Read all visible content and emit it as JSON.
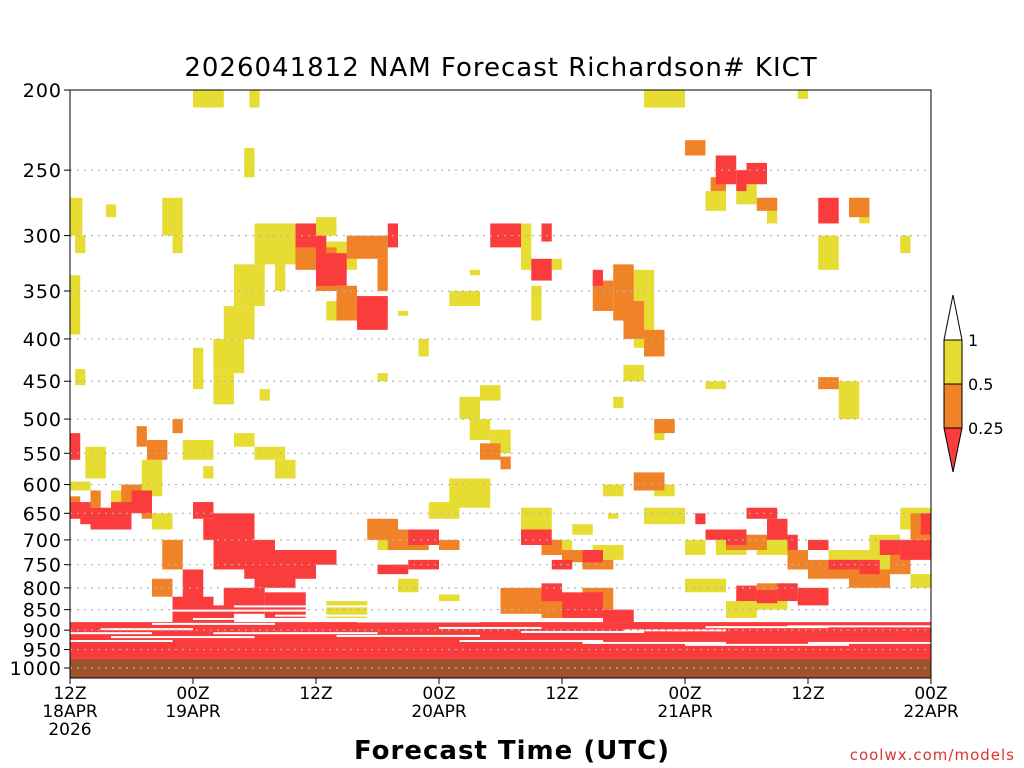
{
  "chart_data": {
    "type": "heatmap",
    "title": "2026041812 NAM Forecast Richardson# KICT",
    "xlabel": "Forecast Time (UTC)",
    "ylabel": "",
    "credit": "coolwx.com/models",
    "x_range_hours": [
      0,
      84
    ],
    "y_range_hPa": [
      200,
      1000
    ],
    "y_ticks": [
      200,
      250,
      300,
      350,
      400,
      450,
      500,
      550,
      600,
      650,
      700,
      750,
      800,
      850,
      900,
      950,
      1000
    ],
    "y_tick_labels": [
      "200",
      "250",
      "300",
      "350",
      "400",
      "450",
      "500",
      "550",
      "600",
      "650",
      "700",
      "750",
      "800",
      "850",
      "900",
      "950",
      "1000"
    ],
    "x_ticks": [
      {
        "hour": 0,
        "line1": "12Z",
        "line2": "18APR",
        "line3": "2026"
      },
      {
        "hour": 12,
        "line1": "00Z",
        "line2": "19APR",
        "line3": ""
      },
      {
        "hour": 24,
        "line1": "12Z",
        "line2": "",
        "line3": ""
      },
      {
        "hour": 36,
        "line1": "00Z",
        "line2": "20APR",
        "line3": ""
      },
      {
        "hour": 48,
        "line1": "12Z",
        "line2": "",
        "line3": ""
      },
      {
        "hour": 60,
        "line1": "00Z",
        "line2": "21APR",
        "line3": ""
      },
      {
        "hour": 72,
        "line1": "12Z",
        "line2": "",
        "line3": ""
      },
      {
        "hour": 84,
        "line1": "00Z",
        "line2": "22APR",
        "line3": ""
      }
    ],
    "legend": {
      "position": "right",
      "labels": [
        "1",
        "0.5",
        "0.25"
      ],
      "colors": [
        "#ffffff",
        "#e6dc32",
        "#f08228",
        "#fa3c3c"
      ]
    },
    "colors": {
      "yellow": "#e6dc32",
      "orange": "#f08228",
      "red": "#fa3c3c",
      "ground": "#a0522d"
    },
    "ground_pressure_hPa": 975,
    "regions_note": "Each region: hours [h0,h1], pressure [p0,p1] hPa, class 1=yellow(0.5-1), 2=orange(0.25-0.5), 3=red(<0.25)",
    "regions": [
      [
        0,
        1.2,
        270,
        300,
        1
      ],
      [
        0.5,
        1.5,
        300,
        315,
        1
      ],
      [
        0,
        1,
        335,
        395,
        1
      ],
      [
        0.5,
        1.5,
        435,
        455,
        1
      ],
      [
        3.5,
        4.5,
        275,
        285,
        1
      ],
      [
        9,
        11,
        270,
        300,
        1
      ],
      [
        10,
        11,
        300,
        315,
        1
      ],
      [
        12,
        15,
        200,
        210,
        1
      ],
      [
        17.5,
        18.5,
        200,
        210,
        1
      ],
      [
        17,
        18,
        255,
        235,
        1
      ],
      [
        18,
        24,
        290,
        325,
        1
      ],
      [
        16,
        19,
        325,
        365,
        1
      ],
      [
        15,
        18,
        365,
        400,
        1
      ],
      [
        14,
        17,
        400,
        440,
        1
      ],
      [
        12,
        13,
        410,
        460,
        1
      ],
      [
        14,
        16,
        440,
        480,
        1
      ],
      [
        18.5,
        19.5,
        460,
        475,
        1
      ],
      [
        20,
        21,
        300,
        350,
        1
      ],
      [
        24,
        26,
        285,
        300,
        1
      ],
      [
        22,
        25,
        300,
        320,
        1
      ],
      [
        24,
        28,
        305,
        330,
        1
      ],
      [
        25,
        28,
        360,
        380,
        1
      ],
      [
        32,
        33,
        370,
        375,
        1
      ],
      [
        34,
        35,
        400,
        420,
        1
      ],
      [
        30,
        31,
        440,
        450,
        1
      ],
      [
        38,
        40,
        470,
        500,
        1
      ],
      [
        39,
        41,
        500,
        530,
        1
      ],
      [
        41,
        43,
        515,
        550,
        1
      ],
      [
        37,
        40,
        350,
        365,
        1
      ],
      [
        39,
        40,
        330,
        335,
        1
      ],
      [
        40,
        42,
        455,
        475,
        1
      ],
      [
        44,
        45,
        290,
        330,
        1
      ],
      [
        45,
        46,
        345,
        380,
        1
      ],
      [
        47,
        48,
        320,
        330,
        1
      ],
      [
        55,
        57,
        330,
        410,
        1
      ],
      [
        56,
        57,
        390,
        420,
        1
      ],
      [
        54,
        56,
        430,
        450,
        1
      ],
      [
        53,
        54,
        470,
        485,
        1
      ],
      [
        57,
        58,
        500,
        530,
        1
      ],
      [
        57,
        59,
        600,
        620,
        1
      ],
      [
        52,
        54,
        600,
        620,
        1
      ],
      [
        52.5,
        53.5,
        650,
        660,
        1
      ],
      [
        49,
        51,
        670,
        690,
        1
      ],
      [
        56,
        60,
        200,
        210,
        1
      ],
      [
        62,
        64,
        265,
        280,
        1
      ],
      [
        65,
        67,
        260,
        275,
        1
      ],
      [
        68,
        69,
        280,
        290,
        1
      ],
      [
        71,
        72,
        200,
        205,
        1
      ],
      [
        73,
        75,
        300,
        330,
        1
      ],
      [
        77,
        78,
        280,
        290,
        1
      ],
      [
        81,
        82,
        300,
        315,
        1
      ],
      [
        73,
        75,
        445,
        460,
        1
      ],
      [
        75,
        77,
        450,
        500,
        1
      ],
      [
        62,
        64,
        450,
        460,
        1
      ],
      [
        0,
        2,
        595,
        610,
        1
      ],
      [
        1.5,
        3.5,
        540,
        590,
        1
      ],
      [
        4,
        6,
        610,
        640,
        1
      ],
      [
        7,
        9,
        560,
        620,
        1
      ],
      [
        8,
        10,
        650,
        680,
        1
      ],
      [
        11,
        14,
        530,
        560,
        1
      ],
      [
        13,
        14,
        570,
        590,
        1
      ],
      [
        16,
        18,
        520,
        540,
        1
      ],
      [
        18,
        21,
        540,
        560,
        1
      ],
      [
        20,
        22,
        560,
        590,
        1
      ],
      [
        30,
        33,
        690,
        720,
        1
      ],
      [
        35,
        38,
        630,
        660,
        1
      ],
      [
        37,
        41,
        590,
        640,
        1
      ],
      [
        44,
        47,
        640,
        680,
        1
      ],
      [
        47,
        49,
        700,
        720,
        1
      ],
      [
        51,
        54,
        710,
        740,
        1
      ],
      [
        56,
        60,
        640,
        670,
        1
      ],
      [
        60,
        62,
        700,
        730,
        1
      ],
      [
        63,
        66,
        700,
        730,
        1
      ],
      [
        67,
        70,
        700,
        730,
        1
      ],
      [
        70,
        72,
        730,
        760,
        1
      ],
      [
        74,
        76,
        720,
        760,
        1
      ],
      [
        76,
        80,
        720,
        780,
        1
      ],
      [
        78,
        81,
        690,
        720,
        1
      ],
      [
        81,
        84,
        640,
        680,
        1
      ],
      [
        80,
        84,
        700,
        730,
        1
      ],
      [
        82,
        84,
        770,
        800,
        1
      ],
      [
        25,
        29,
        830,
        870,
        1
      ],
      [
        32,
        34,
        780,
        810,
        1
      ],
      [
        36,
        38,
        815,
        830,
        1
      ],
      [
        60,
        64,
        780,
        810,
        1
      ],
      [
        64,
        67,
        830,
        870,
        1
      ],
      [
        67,
        70,
        800,
        850,
        1
      ],
      [
        54,
        58,
        880,
        900,
        1
      ],
      [
        0,
        1,
        620,
        650,
        2
      ],
      [
        2,
        3,
        610,
        640,
        2
      ],
      [
        5,
        7,
        600,
        640,
        2
      ],
      [
        7,
        8,
        640,
        660,
        2
      ],
      [
        6.5,
        7.5,
        510,
        540,
        2
      ],
      [
        7.5,
        9.5,
        530,
        560,
        2
      ],
      [
        10,
        11,
        500,
        520,
        2
      ],
      [
        9,
        11,
        700,
        760,
        2
      ],
      [
        8,
        10,
        780,
        820,
        2
      ],
      [
        22,
        24,
        300,
        330,
        2
      ],
      [
        24,
        26,
        310,
        350,
        2
      ],
      [
        26,
        28,
        345,
        380,
        2
      ],
      [
        28,
        29,
        365,
        380,
        2
      ],
      [
        27,
        31,
        300,
        320,
        2
      ],
      [
        30,
        31,
        320,
        350,
        2
      ],
      [
        29,
        32,
        660,
        700,
        2
      ],
      [
        31,
        35,
        680,
        720,
        2
      ],
      [
        36,
        38,
        700,
        720,
        2
      ],
      [
        40,
        42,
        535,
        560,
        2
      ],
      [
        42,
        43,
        555,
        575,
        2
      ],
      [
        44,
        46,
        680,
        700,
        2
      ],
      [
        46,
        48,
        700,
        730,
        2
      ],
      [
        48,
        50,
        720,
        745,
        2
      ],
      [
        50,
        53,
        740,
        760,
        2
      ],
      [
        42,
        46,
        800,
        860,
        2
      ],
      [
        46,
        50,
        820,
        870,
        2
      ],
      [
        50,
        53,
        800,
        850,
        2
      ],
      [
        53,
        55,
        325,
        380,
        2
      ],
      [
        51,
        53,
        340,
        370,
        2
      ],
      [
        54,
        56,
        360,
        400,
        2
      ],
      [
        56,
        58,
        390,
        420,
        2
      ],
      [
        57,
        59,
        500,
        520,
        2
      ],
      [
        55,
        58,
        580,
        610,
        2
      ],
      [
        60,
        62,
        230,
        240,
        2
      ],
      [
        62.5,
        64,
        255,
        265,
        2
      ],
      [
        67,
        69,
        270,
        280,
        2
      ],
      [
        76,
        78,
        270,
        285,
        2
      ],
      [
        73,
        75,
        445,
        460,
        2
      ],
      [
        64,
        68,
        690,
        720,
        2
      ],
      [
        70,
        72,
        720,
        760,
        2
      ],
      [
        72,
        76,
        740,
        780,
        2
      ],
      [
        76,
        80,
        760,
        800,
        2
      ],
      [
        80,
        82,
        730,
        770,
        2
      ],
      [
        82,
        84,
        650,
        700,
        2
      ],
      [
        67,
        70,
        790,
        820,
        2
      ],
      [
        12,
        14,
        630,
        660,
        3
      ],
      [
        13,
        16,
        660,
        700,
        3
      ],
      [
        14,
        18,
        650,
        760,
        3
      ],
      [
        17,
        20,
        700,
        780,
        3
      ],
      [
        18,
        22,
        740,
        800,
        3
      ],
      [
        20,
        24,
        720,
        780,
        3
      ],
      [
        24,
        26,
        720,
        750,
        3
      ],
      [
        11,
        13,
        760,
        830,
        3
      ],
      [
        10,
        14,
        820,
        880,
        3
      ],
      [
        12,
        16,
        840,
        900,
        3
      ],
      [
        15,
        19,
        800,
        860,
        3
      ],
      [
        19,
        23,
        810,
        870,
        3
      ],
      [
        22,
        24,
        290,
        310,
        3
      ],
      [
        24,
        25,
        300,
        320,
        3
      ],
      [
        24,
        27,
        315,
        345,
        3
      ],
      [
        28,
        31,
        360,
        390,
        3
      ],
      [
        28,
        31,
        355,
        365,
        3
      ],
      [
        31,
        32,
        290,
        310,
        3
      ],
      [
        41,
        44,
        290,
        310,
        3
      ],
      [
        46,
        47,
        290,
        305,
        3
      ],
      [
        45,
        47,
        320,
        340,
        3
      ],
      [
        51,
        52,
        330,
        345,
        3
      ],
      [
        33,
        36,
        680,
        710,
        3
      ],
      [
        33,
        36,
        740,
        760,
        3
      ],
      [
        30,
        33,
        750,
        770,
        3
      ],
      [
        44,
        47,
        680,
        710,
        3
      ],
      [
        46,
        48,
        790,
        830,
        3
      ],
      [
        48,
        52,
        810,
        870,
        3
      ],
      [
        52,
        55,
        850,
        880,
        3
      ],
      [
        47,
        49,
        740,
        760,
        3
      ],
      [
        50,
        52,
        720,
        745,
        3
      ],
      [
        61,
        62,
        650,
        670,
        3
      ],
      [
        62,
        64,
        680,
        700,
        3
      ],
      [
        64,
        66,
        680,
        710,
        3
      ],
      [
        66,
        69,
        640,
        660,
        3
      ],
      [
        68,
        70,
        660,
        700,
        3
      ],
      [
        70,
        71,
        690,
        720,
        3
      ],
      [
        63,
        65,
        240,
        260,
        3
      ],
      [
        65,
        66,
        250,
        265,
        3
      ],
      [
        66,
        68,
        245,
        260,
        3
      ],
      [
        73,
        75,
        270,
        290,
        3
      ],
      [
        72,
        74,
        700,
        720,
        3
      ],
      [
        74,
        77,
        740,
        760,
        3
      ],
      [
        77,
        79,
        740,
        770,
        3
      ],
      [
        79,
        81,
        700,
        730,
        3
      ],
      [
        81,
        84,
        700,
        740,
        3
      ],
      [
        83,
        84,
        650,
        690,
        3
      ],
      [
        0,
        1,
        520,
        560,
        3
      ],
      [
        0,
        2,
        630,
        660,
        3
      ],
      [
        2,
        4,
        640,
        680,
        3
      ],
      [
        4,
        6,
        630,
        680,
        3
      ],
      [
        6,
        8,
        610,
        650,
        3
      ],
      [
        1,
        2,
        640,
        670,
        3
      ],
      [
        65,
        67,
        795,
        830,
        3
      ],
      [
        67,
        69,
        805,
        835,
        3
      ],
      [
        69,
        71,
        790,
        830,
        3
      ],
      [
        71,
        74,
        800,
        840,
        3
      ],
      [
        0,
        84,
        880,
        975,
        3
      ]
    ],
    "white_streaks_note": "Thin white gaps at low levels: [h0,h1,pressure]",
    "white_streaks": [
      [
        0,
        8,
        905
      ],
      [
        3,
        12,
        895
      ],
      [
        8,
        20,
        882
      ],
      [
        12,
        26,
        870
      ],
      [
        20,
        32,
        862
      ],
      [
        28,
        40,
        876
      ],
      [
        36,
        46,
        892
      ],
      [
        44,
        56,
        902
      ],
      [
        54,
        64,
        898
      ],
      [
        62,
        74,
        890
      ],
      [
        70,
        84,
        888
      ],
      [
        0,
        10,
        925
      ],
      [
        4,
        18,
        915
      ],
      [
        14,
        30,
        905
      ],
      [
        26,
        40,
        912
      ],
      [
        38,
        52,
        925
      ],
      [
        50,
        64,
        930
      ],
      [
        60,
        76,
        935
      ],
      [
        72,
        84,
        930
      ],
      [
        10,
        24,
        850
      ],
      [
        16,
        30,
        840
      ],
      [
        34,
        42,
        860
      ]
    ]
  }
}
